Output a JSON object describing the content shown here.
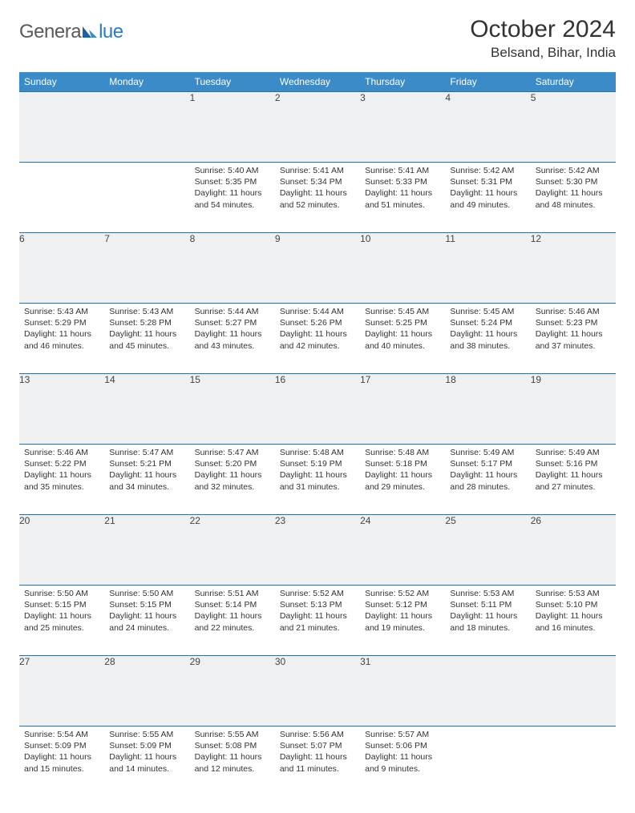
{
  "logo": {
    "general": "Genera",
    "blue": "lue"
  },
  "title": "October 2024",
  "location": "Belsand, Bihar, India",
  "colors": {
    "header_bg": "#3b8bc8",
    "header_text": "#ffffff",
    "row_border": "#3b6a90",
    "daynum_bg": "#eef0f1",
    "text": "#333333",
    "logo_gray": "#5a5a5a",
    "logo_blue": "#2b7cc4"
  },
  "day_headers": [
    "Sunday",
    "Monday",
    "Tuesday",
    "Wednesday",
    "Thursday",
    "Friday",
    "Saturday"
  ],
  "weeks": [
    {
      "nums": [
        "",
        "",
        "1",
        "2",
        "3",
        "4",
        "5"
      ],
      "cells": [
        null,
        null,
        {
          "sunrise": "5:40 AM",
          "sunset": "5:35 PM",
          "daylight": "11 hours and 54 minutes."
        },
        {
          "sunrise": "5:41 AM",
          "sunset": "5:34 PM",
          "daylight": "11 hours and 52 minutes."
        },
        {
          "sunrise": "5:41 AM",
          "sunset": "5:33 PM",
          "daylight": "11 hours and 51 minutes."
        },
        {
          "sunrise": "5:42 AM",
          "sunset": "5:31 PM",
          "daylight": "11 hours and 49 minutes."
        },
        {
          "sunrise": "5:42 AM",
          "sunset": "5:30 PM",
          "daylight": "11 hours and 48 minutes."
        }
      ]
    },
    {
      "nums": [
        "6",
        "7",
        "8",
        "9",
        "10",
        "11",
        "12"
      ],
      "cells": [
        {
          "sunrise": "5:43 AM",
          "sunset": "5:29 PM",
          "daylight": "11 hours and 46 minutes."
        },
        {
          "sunrise": "5:43 AM",
          "sunset": "5:28 PM",
          "daylight": "11 hours and 45 minutes."
        },
        {
          "sunrise": "5:44 AM",
          "sunset": "5:27 PM",
          "daylight": "11 hours and 43 minutes."
        },
        {
          "sunrise": "5:44 AM",
          "sunset": "5:26 PM",
          "daylight": "11 hours and 42 minutes."
        },
        {
          "sunrise": "5:45 AM",
          "sunset": "5:25 PM",
          "daylight": "11 hours and 40 minutes."
        },
        {
          "sunrise": "5:45 AM",
          "sunset": "5:24 PM",
          "daylight": "11 hours and 38 minutes."
        },
        {
          "sunrise": "5:46 AM",
          "sunset": "5:23 PM",
          "daylight": "11 hours and 37 minutes."
        }
      ]
    },
    {
      "nums": [
        "13",
        "14",
        "15",
        "16",
        "17",
        "18",
        "19"
      ],
      "cells": [
        {
          "sunrise": "5:46 AM",
          "sunset": "5:22 PM",
          "daylight": "11 hours and 35 minutes."
        },
        {
          "sunrise": "5:47 AM",
          "sunset": "5:21 PM",
          "daylight": "11 hours and 34 minutes."
        },
        {
          "sunrise": "5:47 AM",
          "sunset": "5:20 PM",
          "daylight": "11 hours and 32 minutes."
        },
        {
          "sunrise": "5:48 AM",
          "sunset": "5:19 PM",
          "daylight": "11 hours and 31 minutes."
        },
        {
          "sunrise": "5:48 AM",
          "sunset": "5:18 PM",
          "daylight": "11 hours and 29 minutes."
        },
        {
          "sunrise": "5:49 AM",
          "sunset": "5:17 PM",
          "daylight": "11 hours and 28 minutes."
        },
        {
          "sunrise": "5:49 AM",
          "sunset": "5:16 PM",
          "daylight": "11 hours and 27 minutes."
        }
      ]
    },
    {
      "nums": [
        "20",
        "21",
        "22",
        "23",
        "24",
        "25",
        "26"
      ],
      "cells": [
        {
          "sunrise": "5:50 AM",
          "sunset": "5:15 PM",
          "daylight": "11 hours and 25 minutes."
        },
        {
          "sunrise": "5:50 AM",
          "sunset": "5:15 PM",
          "daylight": "11 hours and 24 minutes."
        },
        {
          "sunrise": "5:51 AM",
          "sunset": "5:14 PM",
          "daylight": "11 hours and 22 minutes."
        },
        {
          "sunrise": "5:52 AM",
          "sunset": "5:13 PM",
          "daylight": "11 hours and 21 minutes."
        },
        {
          "sunrise": "5:52 AM",
          "sunset": "5:12 PM",
          "daylight": "11 hours and 19 minutes."
        },
        {
          "sunrise": "5:53 AM",
          "sunset": "5:11 PM",
          "daylight": "11 hours and 18 minutes."
        },
        {
          "sunrise": "5:53 AM",
          "sunset": "5:10 PM",
          "daylight": "11 hours and 16 minutes."
        }
      ]
    },
    {
      "nums": [
        "27",
        "28",
        "29",
        "30",
        "31",
        "",
        ""
      ],
      "cells": [
        {
          "sunrise": "5:54 AM",
          "sunset": "5:09 PM",
          "daylight": "11 hours and 15 minutes."
        },
        {
          "sunrise": "5:55 AM",
          "sunset": "5:09 PM",
          "daylight": "11 hours and 14 minutes."
        },
        {
          "sunrise": "5:55 AM",
          "sunset": "5:08 PM",
          "daylight": "11 hours and 12 minutes."
        },
        {
          "sunrise": "5:56 AM",
          "sunset": "5:07 PM",
          "daylight": "11 hours and 11 minutes."
        },
        {
          "sunrise": "5:57 AM",
          "sunset": "5:06 PM",
          "daylight": "11 hours and 9 minutes."
        },
        null,
        null
      ]
    }
  ],
  "labels": {
    "sunrise": "Sunrise: ",
    "sunset": "Sunset: ",
    "daylight": "Daylight: "
  }
}
